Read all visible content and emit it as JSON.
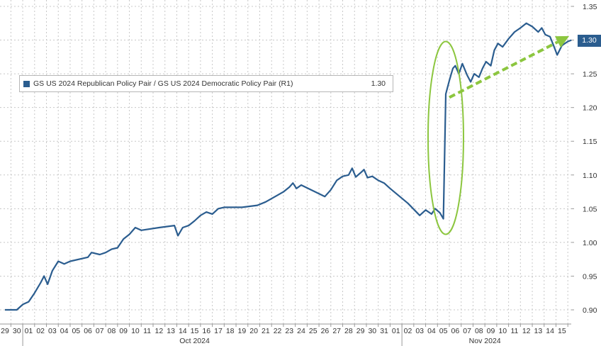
{
  "colors": {
    "series": "#2b5d8f",
    "highlight": "#8cc63f",
    "grid": "#c8c8c8"
  },
  "legend": {
    "label": "GS US 2024 Republican Policy Pair / GS US 2024 Democratic Policy Pair (R1)",
    "value": "1.30"
  },
  "last_value_badge": "1.30",
  "chart_data": {
    "type": "line",
    "x_tick_labels": [
      "29",
      "30",
      "01",
      "02",
      "03",
      "04",
      "05",
      "06",
      "07",
      "08",
      "09",
      "10",
      "11",
      "12",
      "13",
      "14",
      "15",
      "16",
      "17",
      "18",
      "19",
      "20",
      "21",
      "22",
      "23",
      "24",
      "25",
      "26",
      "27",
      "28",
      "29",
      "30",
      "31",
      "01",
      "02",
      "03",
      "04",
      "05",
      "06",
      "07",
      "08",
      "09",
      "10",
      "11",
      "12",
      "13",
      "14",
      "15"
    ],
    "month_labels": [
      {
        "label": "Oct 2024",
        "at_tick": 16
      },
      {
        "label": "Nov 2024",
        "at_tick": 40.5
      }
    ],
    "y_axis": {
      "side": "right",
      "ylim": [
        0.88,
        1.35
      ],
      "ticks": [
        0.9,
        0.95,
        1.0,
        1.05,
        1.1,
        1.15,
        1.2,
        1.25,
        1.3,
        1.35
      ]
    },
    "grid": true,
    "legend_position": "top-left",
    "series": [
      {
        "name": "GS US 2024 Republican Policy Pair / GS US 2024 Democratic Policy Pair (R1)",
        "points": [
          [
            0,
            0.9
          ],
          [
            1,
            0.9
          ],
          [
            1.5,
            0.908
          ],
          [
            2,
            0.912
          ],
          [
            2.5,
            0.925
          ],
          [
            3,
            0.94
          ],
          [
            3.3,
            0.95
          ],
          [
            3.6,
            0.938
          ],
          [
            4,
            0.958
          ],
          [
            4.5,
            0.972
          ],
          [
            5,
            0.968
          ],
          [
            5.5,
            0.972
          ],
          [
            7,
            0.978
          ],
          [
            7.3,
            0.985
          ],
          [
            8,
            0.982
          ],
          [
            8.5,
            0.985
          ],
          [
            9,
            0.99
          ],
          [
            9.5,
            0.992
          ],
          [
            10,
            1.005
          ],
          [
            10.5,
            1.012
          ],
          [
            11,
            1.022
          ],
          [
            11.5,
            1.018
          ],
          [
            13,
            1.022
          ],
          [
            14.3,
            1.025
          ],
          [
            14.6,
            1.01
          ],
          [
            15,
            1.022
          ],
          [
            15.5,
            1.025
          ],
          [
            16,
            1.032
          ],
          [
            16.5,
            1.04
          ],
          [
            17,
            1.045
          ],
          [
            17.5,
            1.042
          ],
          [
            18,
            1.05
          ],
          [
            18.5,
            1.052
          ],
          [
            20,
            1.052
          ],
          [
            21.3,
            1.055
          ],
          [
            22,
            1.06
          ],
          [
            22.5,
            1.065
          ],
          [
            23,
            1.07
          ],
          [
            23.5,
            1.075
          ],
          [
            24,
            1.082
          ],
          [
            24.3,
            1.088
          ],
          [
            24.6,
            1.08
          ],
          [
            25,
            1.085
          ],
          [
            27,
            1.068
          ],
          [
            27.5,
            1.078
          ],
          [
            28,
            1.092
          ],
          [
            28.5,
            1.098
          ],
          [
            29,
            1.1
          ],
          [
            29.3,
            1.11
          ],
          [
            29.6,
            1.097
          ],
          [
            30,
            1.103
          ],
          [
            30.3,
            1.108
          ],
          [
            30.6,
            1.096
          ],
          [
            31,
            1.098
          ],
          [
            31.5,
            1.092
          ],
          [
            32,
            1.088
          ],
          [
            32.5,
            1.08
          ],
          [
            34,
            1.058
          ],
          [
            35,
            1.04
          ],
          [
            35.5,
            1.048
          ],
          [
            36,
            1.042
          ],
          [
            36.3,
            1.05
          ],
          [
            36.7,
            1.044
          ],
          [
            37,
            1.035
          ],
          [
            37.2,
            1.22
          ],
          [
            37.5,
            1.24
          ],
          [
            37.8,
            1.258
          ],
          [
            38,
            1.262
          ],
          [
            38.3,
            1.25
          ],
          [
            38.6,
            1.265
          ],
          [
            39,
            1.248
          ],
          [
            39.3,
            1.238
          ],
          [
            39.6,
            1.25
          ],
          [
            40,
            1.245
          ],
          [
            40.3,
            1.258
          ],
          [
            40.6,
            1.268
          ],
          [
            41,
            1.262
          ],
          [
            41.3,
            1.285
          ],
          [
            41.6,
            1.295
          ],
          [
            42,
            1.29
          ],
          [
            42.5,
            1.302
          ],
          [
            43,
            1.312
          ],
          [
            43.5,
            1.318
          ],
          [
            44,
            1.325
          ],
          [
            44.5,
            1.32
          ],
          [
            45,
            1.312
          ],
          [
            45.3,
            1.318
          ],
          [
            45.6,
            1.308
          ],
          [
            46,
            1.305
          ],
          [
            46.3,
            1.292
          ],
          [
            46.6,
            1.278
          ],
          [
            47,
            1.292
          ],
          [
            47.5,
            1.298
          ],
          [
            47.8,
            1.3
          ]
        ]
      }
    ],
    "annotations": [
      {
        "type": "ellipse",
        "around": "Nov 05 jump"
      },
      {
        "type": "dashed-arrow",
        "from": [
          37.5,
          1.215
        ],
        "to": [
          47.4,
          1.304
        ]
      }
    ]
  }
}
